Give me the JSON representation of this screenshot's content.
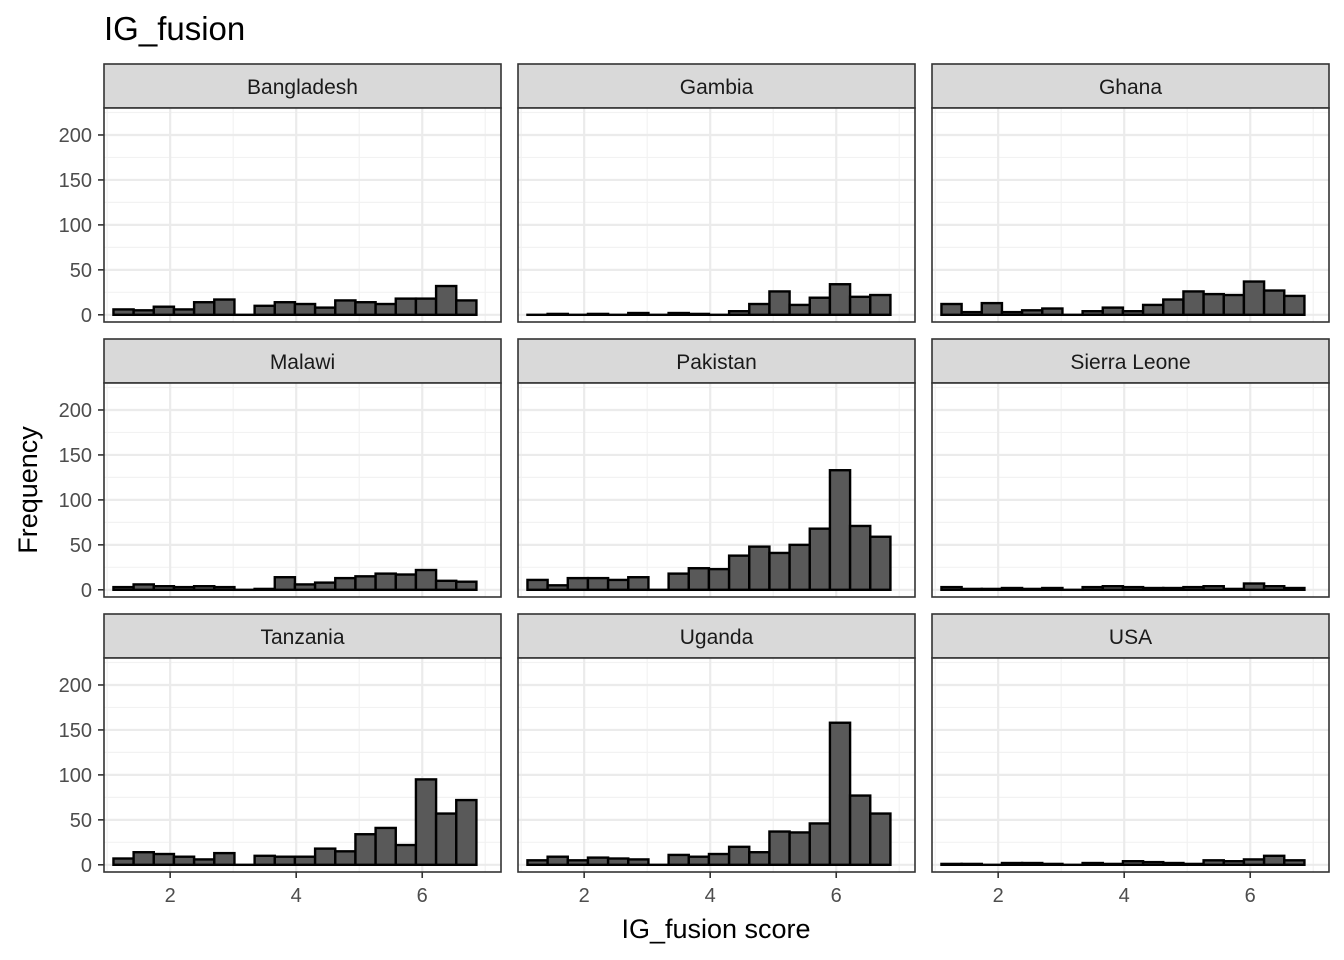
{
  "chart_data": {
    "type": "bar",
    "subtype": "faceted-histogram",
    "title": "IG_fusion",
    "xlabel": "IG_fusion score",
    "ylabel": "Frequency",
    "xlim": [
      0.95,
      7.25
    ],
    "ylim": [
      -8,
      230
    ],
    "x_ticks": [
      2,
      4,
      6
    ],
    "y_ticks": [
      0,
      50,
      100,
      150,
      200
    ],
    "grid": true,
    "bar_color": "#595959",
    "bar_edge_color": "#000000",
    "bins": [
      1.1,
      1.42,
      1.74,
      2.06,
      2.38,
      2.7,
      3.02,
      3.34,
      3.66,
      3.98,
      4.3,
      4.62,
      4.94,
      5.26,
      5.58,
      5.9,
      6.22,
      6.54,
      6.86
    ],
    "facets": [
      {
        "name": "Bangladesh",
        "values": [
          6,
          5,
          9,
          6,
          14,
          17,
          0,
          10,
          14,
          12,
          8,
          16,
          14,
          12,
          18,
          18,
          32,
          16
        ]
      },
      {
        "name": "Gambia",
        "values": [
          0,
          1,
          0,
          1,
          0,
          2,
          0,
          2,
          1,
          0,
          4,
          12,
          26,
          11,
          19,
          34,
          20,
          22
        ]
      },
      {
        "name": "Ghana",
        "values": [
          12,
          3,
          13,
          3,
          5,
          7,
          0,
          4,
          8,
          4,
          11,
          17,
          26,
          23,
          22,
          37,
          27,
          21
        ]
      },
      {
        "name": "Malawi",
        "values": [
          3,
          6,
          4,
          3,
          4,
          3,
          0,
          1,
          14,
          6,
          8,
          13,
          15,
          18,
          17,
          22,
          10,
          9
        ]
      },
      {
        "name": "Pakistan",
        "values": [
          11,
          5,
          13,
          13,
          11,
          14,
          0,
          18,
          24,
          23,
          38,
          48,
          41,
          50,
          68,
          133,
          71,
          59
        ]
      },
      {
        "name": "Sierra Leone",
        "values": [
          3,
          1,
          1,
          2,
          1,
          2,
          0,
          3,
          4,
          3,
          2,
          2,
          3,
          4,
          1,
          7,
          4,
          2
        ]
      },
      {
        "name": "Tanzania",
        "values": [
          7,
          14,
          12,
          9,
          6,
          13,
          0,
          10,
          9,
          9,
          18,
          15,
          34,
          41,
          22,
          95,
          57,
          72
        ]
      },
      {
        "name": "Uganda",
        "values": [
          5,
          9,
          5,
          8,
          7,
          6,
          0,
          11,
          9,
          12,
          20,
          14,
          37,
          36,
          46,
          158,
          77,
          57
        ]
      },
      {
        "name": "USA",
        "values": [
          1,
          1,
          0,
          2,
          2,
          1,
          0,
          2,
          1,
          4,
          3,
          2,
          1,
          5,
          4,
          6,
          10,
          5
        ]
      }
    ]
  }
}
